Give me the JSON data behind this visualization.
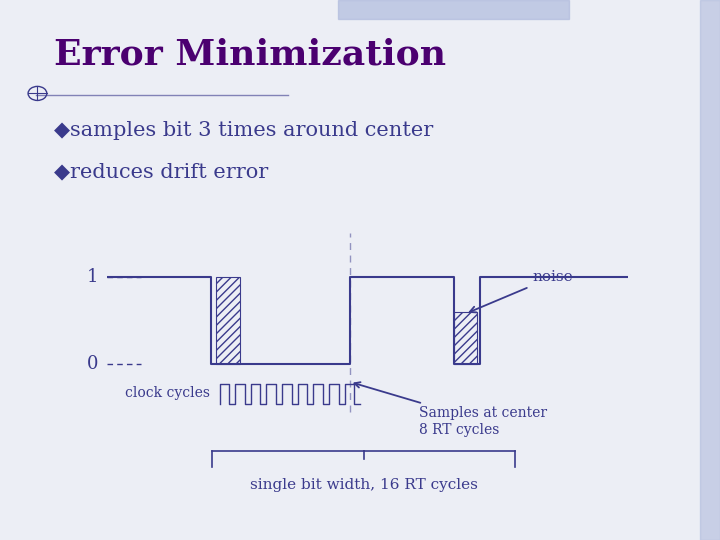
{
  "title": "Error Minimization",
  "bullet1": "samples bit 3 times around center",
  "bullet2": "reduces drift error",
  "title_color": "#4B0070",
  "bullet_color": "#3A3A8C",
  "bg_color": "#ECEEF5",
  "signal_color": "#3A3A8C",
  "label_clock": "clock cycles",
  "label_noise": "noise",
  "label_samples": "Samples at center\n8 RT cycles",
  "label_single_bit": "single bit width, 16 RT cycles",
  "header_bar_color": "#B0BBDD",
  "right_bar_color": "#B0BBDD"
}
